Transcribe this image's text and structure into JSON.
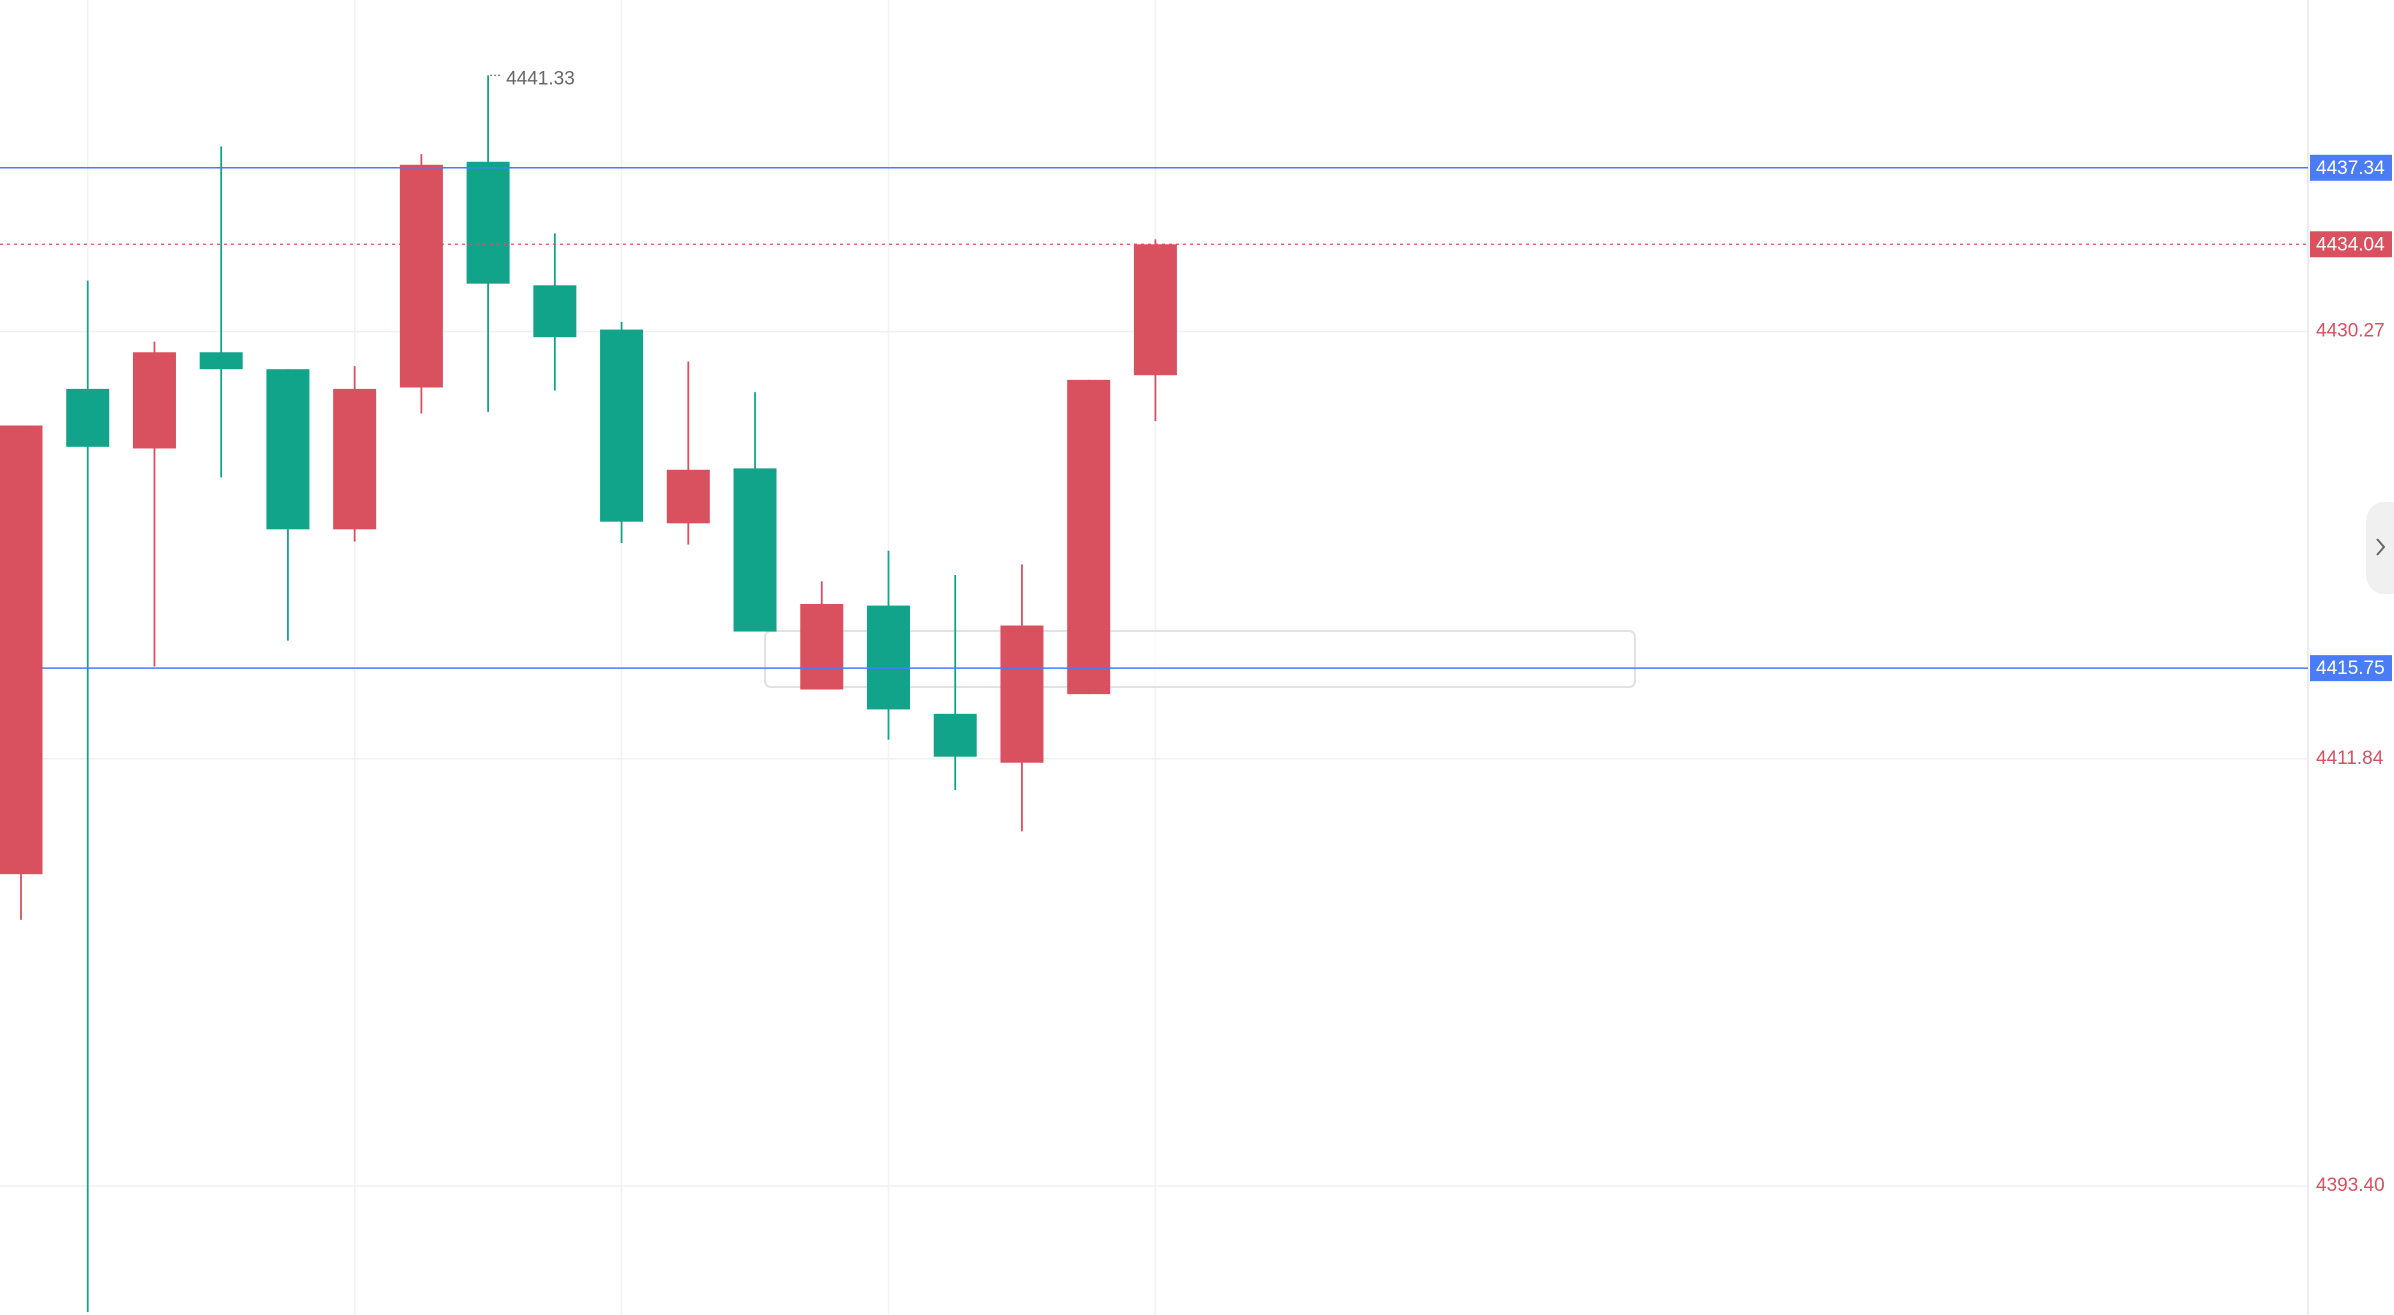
{
  "chart_data": {
    "type": "candlestick",
    "up_color": "#d9505e",
    "down_color": "#12a48a",
    "candles": [
      {
        "open": 4406.86,
        "high": 4426.22,
        "low": 4404.89,
        "close": 4426.22
      },
      {
        "open": 4427.8,
        "high": 4432.47,
        "low": 4387.97,
        "close": 4425.3
      },
      {
        "open": 4425.23,
        "high": 4429.84,
        "low": 4415.82,
        "close": 4429.38
      },
      {
        "open": 4429.38,
        "high": 4438.26,
        "low": 4423.98,
        "close": 4428.65
      },
      {
        "open": 4428.65,
        "high": 4428.65,
        "low": 4416.94,
        "close": 4421.74
      },
      {
        "open": 4421.74,
        "high": 4428.78,
        "low": 4421.21,
        "close": 4427.8
      },
      {
        "open": 4427.86,
        "high": 4437.93,
        "low": 4426.74,
        "close": 4437.47
      },
      {
        "open": 4437.6,
        "high": 4441.33,
        "low": 4426.81,
        "close": 4432.34
      },
      {
        "open": 4432.27,
        "high": 4434.51,
        "low": 4427.73,
        "close": 4430.03
      },
      {
        "open": 4430.36,
        "high": 4430.69,
        "low": 4421.15,
        "close": 4422.07
      },
      {
        "open": 4422.0,
        "high": 4428.98,
        "low": 4421.08,
        "close": 4424.31
      },
      {
        "open": 4424.37,
        "high": 4427.66,
        "low": 4417.33,
        "close": 4417.33
      },
      {
        "open": 4414.83,
        "high": 4419.5,
        "low": 4414.83,
        "close": 4418.52
      },
      {
        "open": 4418.45,
        "high": 4420.82,
        "low": 4412.66,
        "close": 4413.97
      },
      {
        "open": 4413.78,
        "high": 4419.77,
        "low": 4410.49,
        "close": 4411.93
      },
      {
        "open": 4411.67,
        "high": 4420.23,
        "low": 4408.71,
        "close": 4417.59
      },
      {
        "open": 4414.63,
        "high": 4428.19,
        "low": 4414.63,
        "close": 4428.19
      },
      {
        "open": 4428.39,
        "high": 4434.25,
        "low": 4426.41,
        "close": 4434.04
      }
    ],
    "ylim": [
      4387.84,
      4444.58
    ],
    "yticks": [
      4430.27,
      4411.84,
      {
        "value": 4393.4,
        "label": "4393.40"
      }
    ],
    "grid": true,
    "high_marker_candle": 7,
    "price_lines": [
      {
        "value": 4437.34,
        "color": "#4a7cf5",
        "style": "solid"
      },
      {
        "value": 4434.04,
        "color": "#d9505e",
        "style": "dashed"
      },
      {
        "value": 4415.75,
        "color": "#4a7cf5",
        "style": "solid"
      }
    ]
  }
}
